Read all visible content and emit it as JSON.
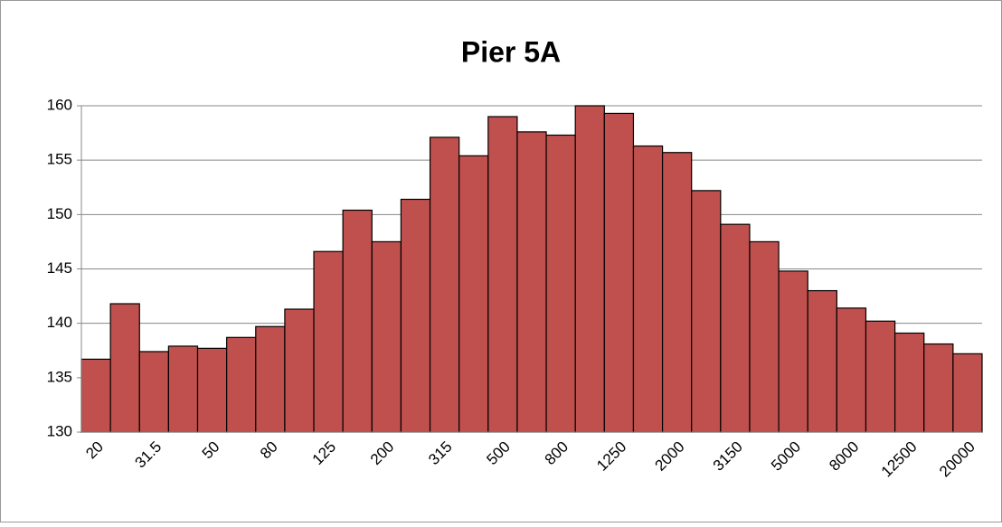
{
  "chart_data": {
    "type": "bar",
    "title": "Pier 5A",
    "categories": [
      "20",
      null,
      "31.5",
      null,
      "50",
      null,
      "80",
      null,
      "125",
      null,
      "200",
      null,
      "315",
      null,
      "500",
      null,
      "800",
      null,
      "1250",
      null,
      "2000",
      null,
      "3150",
      null,
      "5000",
      null,
      "8000",
      null,
      "12500",
      null,
      "20000"
    ],
    "values": [
      136.7,
      141.8,
      137.4,
      137.9,
      137.7,
      138.7,
      139.7,
      141.3,
      146.6,
      150.4,
      147.5,
      151.4,
      157.1,
      155.4,
      159.0,
      157.6,
      157.3,
      160.0,
      159.3,
      156.3,
      155.7,
      152.2,
      149.1,
      147.5,
      144.8,
      143.0,
      141.4,
      140.2,
      139.1,
      138.1,
      137.2
    ],
    "color": "#c0504d",
    "ylim": [
      130,
      160
    ],
    "yticks": [
      130,
      135,
      140,
      145,
      150,
      155,
      160
    ],
    "grid": true
  }
}
